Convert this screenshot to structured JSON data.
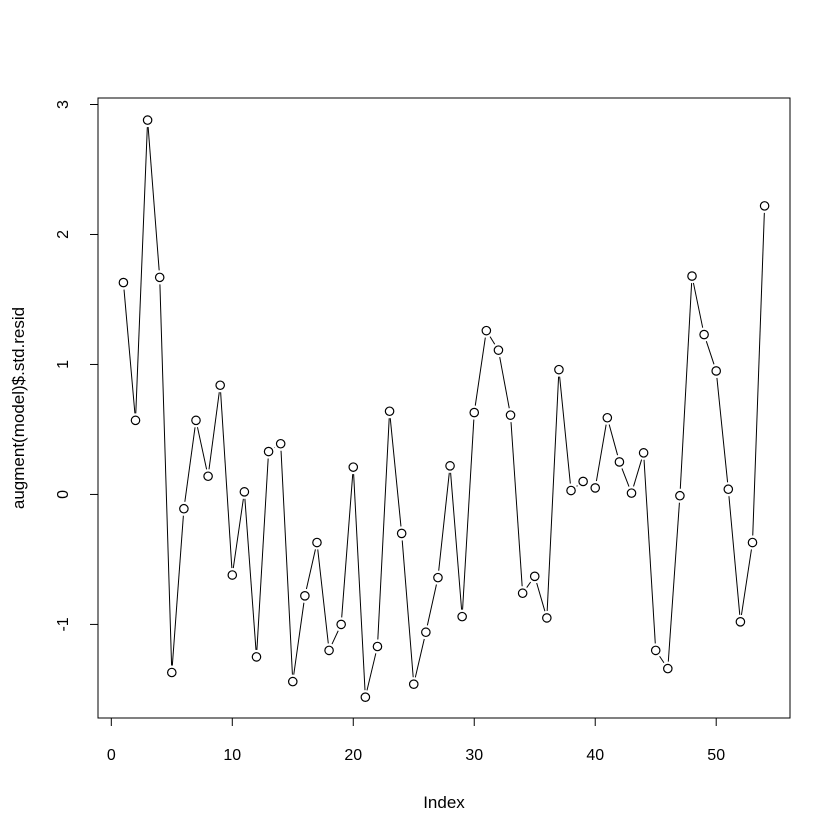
{
  "chart_data": {
    "type": "line",
    "title": "",
    "xlabel": "Index",
    "ylabel": "augment(model)$.std.resid",
    "xlim": [
      -1.1,
      56.1
    ],
    "ylim": [
      -1.72,
      3.05
    ],
    "xticks": [
      0,
      10,
      20,
      30,
      40,
      50
    ],
    "yticks": [
      -1,
      0,
      1,
      2,
      3
    ],
    "grid": false,
    "legend": "none",
    "line_color": "#000000",
    "marker": "open-circle",
    "x": [
      1,
      2,
      3,
      4,
      5,
      6,
      7,
      8,
      9,
      10,
      11,
      12,
      13,
      14,
      15,
      16,
      17,
      18,
      19,
      20,
      21,
      22,
      23,
      24,
      25,
      26,
      27,
      28,
      29,
      30,
      31,
      32,
      33,
      34,
      35,
      36,
      37,
      38,
      39,
      40,
      41,
      42,
      43,
      44,
      45,
      46,
      47,
      48,
      49,
      50,
      51,
      52,
      53,
      54
    ],
    "y": [
      1.63,
      0.57,
      2.88,
      1.67,
      -1.37,
      -0.11,
      0.57,
      0.14,
      0.84,
      -0.62,
      0.02,
      -1.25,
      0.33,
      0.39,
      -1.44,
      -0.78,
      -0.37,
      -1.2,
      -1.0,
      0.21,
      -1.56,
      -1.17,
      0.64,
      -0.3,
      -1.46,
      -1.06,
      -0.64,
      0.22,
      -0.94,
      0.63,
      1.26,
      1.11,
      0.61,
      -0.76,
      -0.63,
      -0.95,
      0.96,
      0.03,
      0.1,
      0.05,
      0.59,
      0.25,
      0.01,
      0.32,
      -1.2,
      -1.34,
      -0.01,
      1.68,
      1.23,
      0.95,
      0.04,
      -0.98,
      -0.37,
      2.22
    ]
  }
}
